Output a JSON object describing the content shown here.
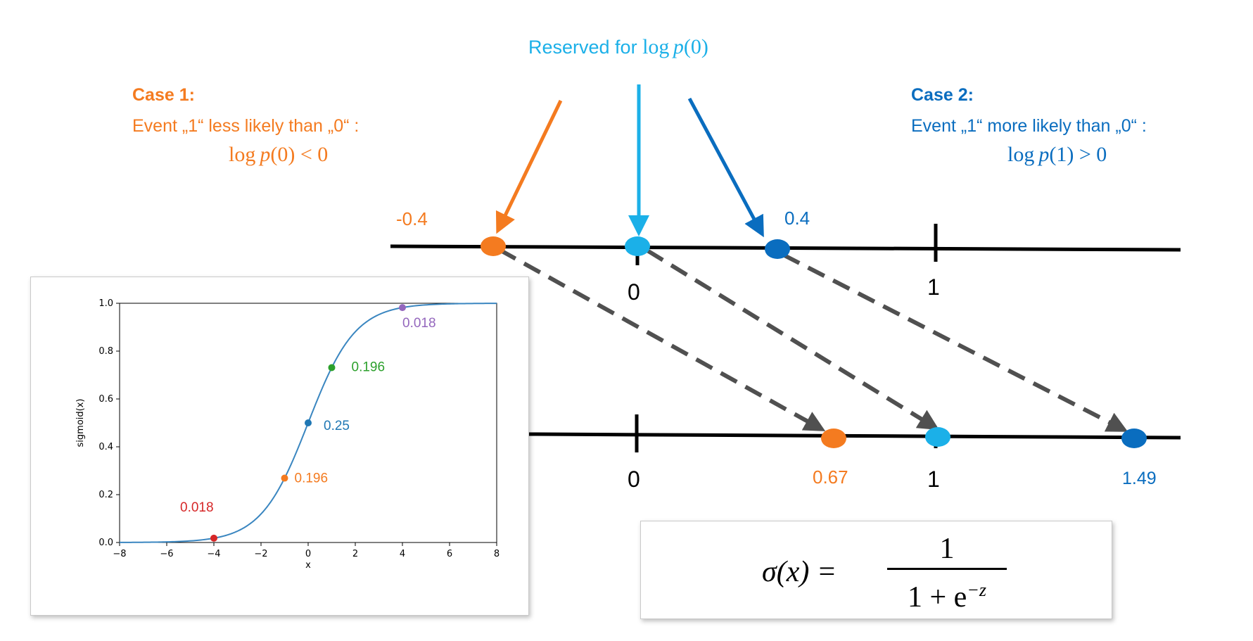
{
  "colors": {
    "orange": "#F47B20",
    "light_blue": "#1BB0E8",
    "dark_blue": "#0A6DBF",
    "black": "#000000",
    "dashed_gray": "#505050",
    "curve": "#3A86C0",
    "red": "#D62728",
    "green": "#2CA02C",
    "purple": "#9467BD"
  },
  "top_label": {
    "prefix": "Reserved for ",
    "math_log": "log",
    "math_rest": "p",
    "math_arg": "(0)"
  },
  "case1": {
    "title": "Case 1:",
    "line": "Event „1“ less likely than „0“ :",
    "math_log": "log",
    "math_p": "p",
    "math_tail": "(0) < 0"
  },
  "case2": {
    "title": "Case 2:",
    "line": "Event „1“ more likely than „0“ :",
    "math_log": "log",
    "math_p": "p",
    "math_tail": "(1) > 0"
  },
  "top_axis": {
    "point_labels": [
      "-0.4",
      "0.4"
    ],
    "tick_labels": [
      "0",
      "1"
    ],
    "points": [
      -0.4,
      0.0,
      0.4
    ]
  },
  "bottom_axis": {
    "point_labels": [
      "0.67",
      "1.49"
    ],
    "tick_labels": [
      "0",
      "1"
    ],
    "points": [
      0.67,
      1.0,
      1.49
    ]
  },
  "formula": {
    "lhs": "σ(x) =",
    "numerator": "1",
    "denominator_base": "1 + e",
    "exponent": "−z"
  },
  "chart_data": {
    "type": "line",
    "series": [
      {
        "function": "sigmoid",
        "x_range": [
          -8,
          8
        ]
      }
    ],
    "highlighted_points": [
      {
        "x": -4,
        "y": 0.018,
        "label": "0.018",
        "color": "#D62728"
      },
      {
        "x": -1,
        "y": 0.269,
        "label": "0.196",
        "color": "#F47B20"
      },
      {
        "x": 0,
        "y": 0.5,
        "label": "0.25",
        "color": "#1F77B4"
      },
      {
        "x": 1,
        "y": 0.731,
        "label": "0.196",
        "color": "#2CA02C"
      },
      {
        "x": 4,
        "y": 0.982,
        "label": "0.018",
        "color": "#9467BD"
      }
    ],
    "xlabel": "x",
    "ylabel": "sigmoid(x)",
    "xlim": [
      -8,
      8
    ],
    "ylim": [
      0,
      1
    ],
    "x_ticks": [
      -8,
      -6,
      -4,
      -2,
      0,
      2,
      4,
      6,
      8
    ],
    "x_tick_labels": [
      "−8",
      "−6",
      "−4",
      "−2",
      "0",
      "2",
      "4",
      "6",
      "8"
    ],
    "y_ticks": [
      0.0,
      0.2,
      0.4,
      0.6,
      0.8,
      1.0
    ],
    "y_tick_labels": [
      "0.0",
      "0.2",
      "0.4",
      "0.6",
      "0.8",
      "1.0"
    ],
    "grid": false
  }
}
